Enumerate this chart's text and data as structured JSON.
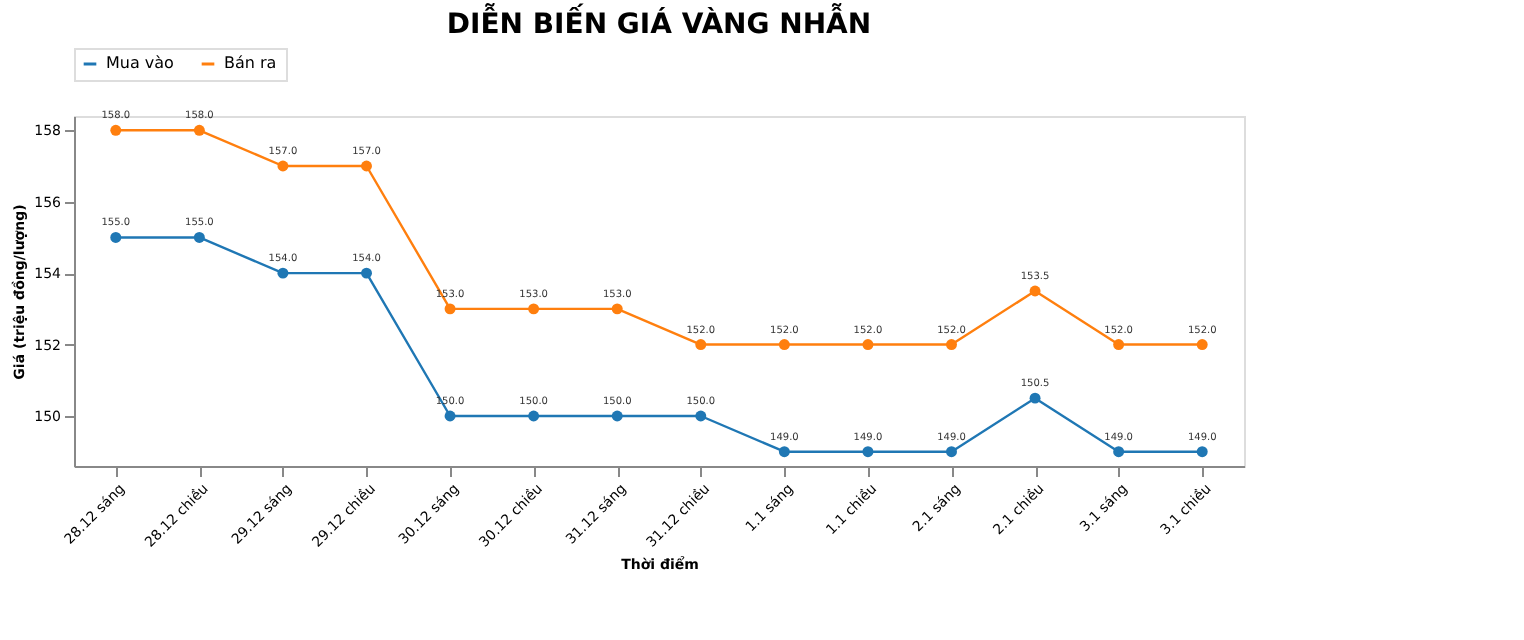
{
  "chart_data": {
    "type": "line",
    "title": "DIỄN BIẾN GIÁ VÀNG NHẪN",
    "xlabel": "Thời điểm",
    "ylabel": "Giá (triệu đồng/lượng)",
    "categories": [
      "28.12 sáng",
      "28.12 chiều",
      "29.12 sáng",
      "29.12 chiều",
      "30.12 sáng",
      "30.12 chiều",
      "31.12 sáng",
      "31.12 chiều",
      "1.1 sáng",
      "1.1 chiều",
      "2.1 sáng",
      "2.1 chiều",
      "3.1 sáng",
      "3.1 chiều"
    ],
    "series": [
      {
        "name": "Mua vào",
        "color": "#1f77b4",
        "values": [
          155,
          155,
          154,
          154,
          150,
          150,
          150,
          150,
          149,
          149,
          149,
          150.5,
          149,
          149
        ],
        "value_labels": [
          "155.0",
          "155.0",
          "154.0",
          "154.0",
          "150.0",
          "150.0",
          "150.0",
          "150.0",
          "149.0",
          "149.0",
          "149.0",
          "150.5",
          "149.0",
          "149.0"
        ]
      },
      {
        "name": "Bán ra",
        "color": "#ff7f0e",
        "values": [
          158,
          158,
          157,
          157,
          153,
          153,
          153,
          152,
          152,
          152,
          152,
          153.5,
          152,
          152
        ],
        "value_labels": [
          "158.0",
          "158.0",
          "157.0",
          "157.0",
          "153.0",
          "153.0",
          "153.0",
          "152.0",
          "152.0",
          "152.0",
          "152.0",
          "153.5",
          "152.0",
          "152.0"
        ]
      }
    ],
    "ylim": [
      148.6,
      158.4
    ],
    "yticks": [
      150,
      152,
      154,
      156,
      158
    ],
    "grid": false,
    "legend": "top left",
    "marker": "circle",
    "line_style": "solid"
  }
}
